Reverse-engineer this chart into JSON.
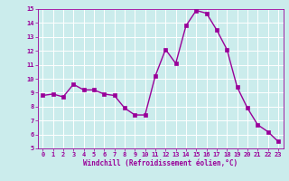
{
  "x": [
    0,
    1,
    2,
    3,
    4,
    5,
    6,
    7,
    8,
    9,
    10,
    11,
    12,
    13,
    14,
    15,
    16,
    17,
    18,
    19,
    20,
    21,
    22,
    23
  ],
  "y": [
    8.8,
    8.9,
    8.7,
    9.6,
    9.2,
    9.2,
    8.9,
    8.8,
    7.9,
    7.4,
    7.4,
    10.2,
    12.1,
    11.1,
    13.8,
    14.9,
    14.7,
    13.5,
    12.1,
    9.4,
    7.9,
    6.7,
    6.2,
    5.5
  ],
  "line_color": "#990099",
  "marker": "s",
  "markersize": 2.2,
  "linewidth": 1.0,
  "bg_color": "#cbecec",
  "grid_color": "#ffffff",
  "xlabel": "Windchill (Refroidissement éolien,°C)",
  "xlabel_color": "#990099",
  "tick_color": "#990099",
  "ylim": [
    5,
    15
  ],
  "xlim": [
    -0.5,
    23.5
  ],
  "yticks": [
    5,
    6,
    7,
    8,
    9,
    10,
    11,
    12,
    13,
    14,
    15
  ],
  "xticks": [
    0,
    1,
    2,
    3,
    4,
    5,
    6,
    7,
    8,
    9,
    10,
    11,
    12,
    13,
    14,
    15,
    16,
    17,
    18,
    19,
    20,
    21,
    22,
    23
  ],
  "font_family": "monospace",
  "tick_fontsize": 5.0,
  "xlabel_fontsize": 5.5
}
